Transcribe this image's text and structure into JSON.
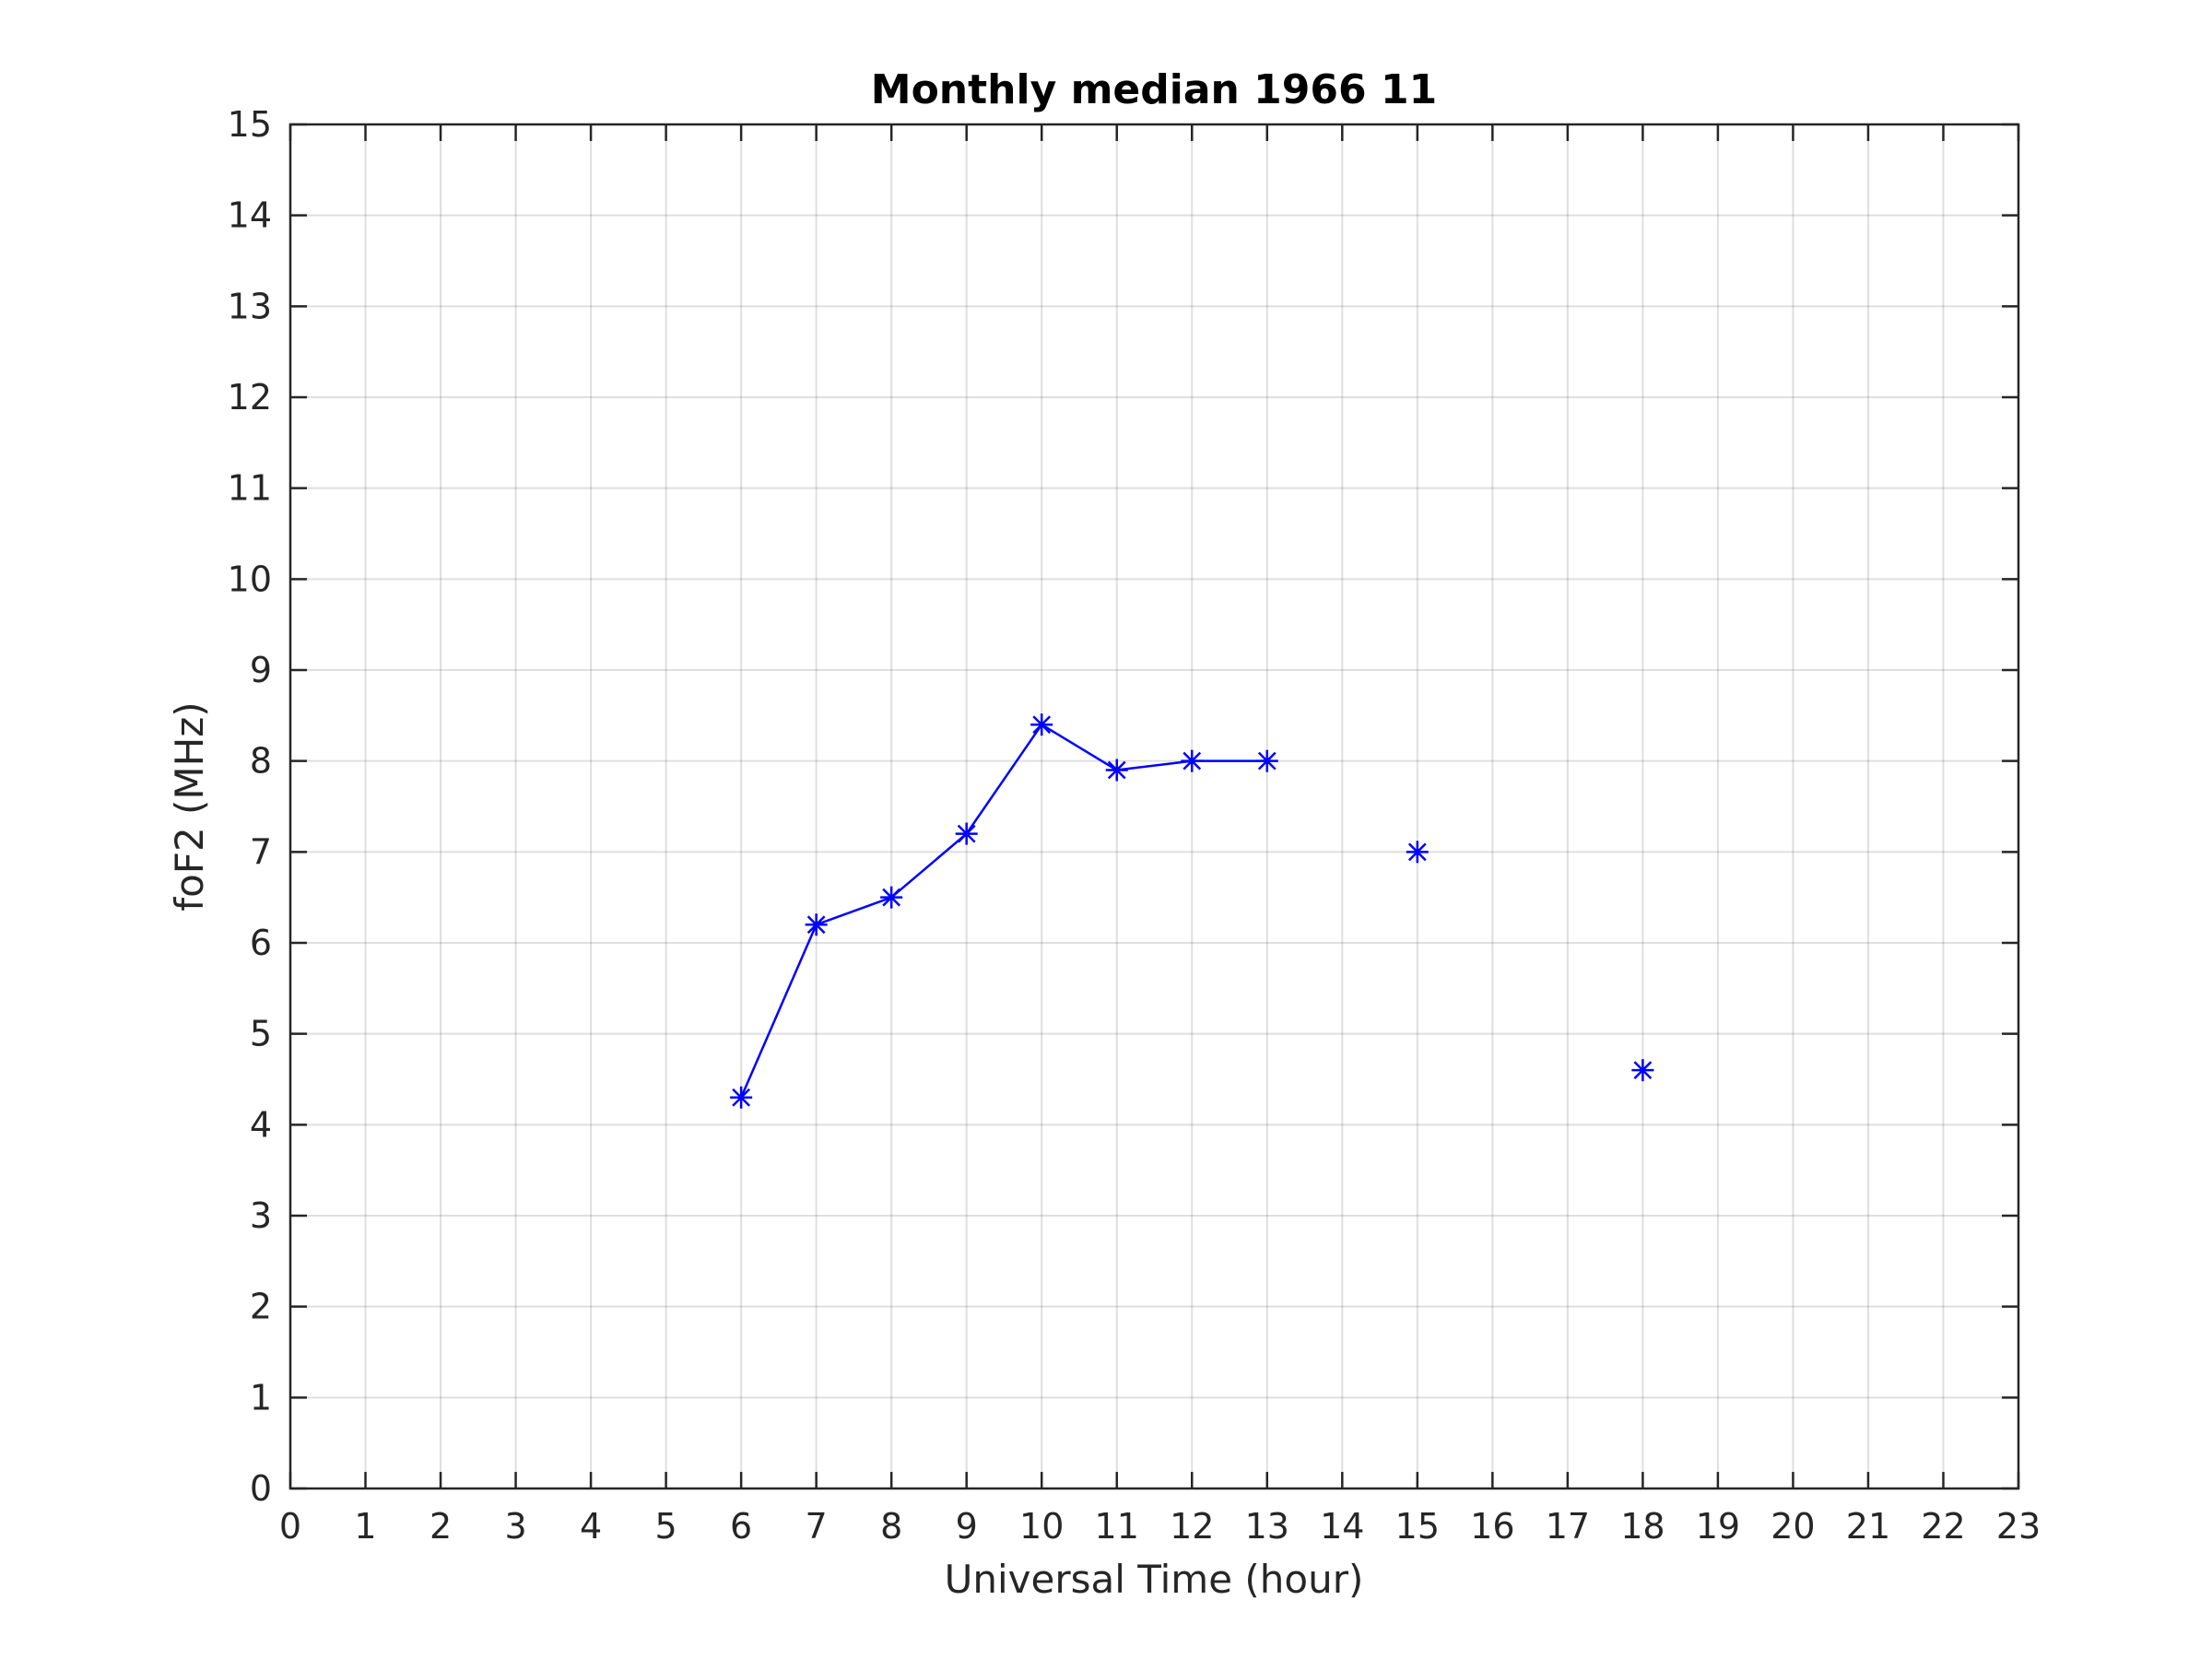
{
  "chart_data": {
    "type": "line",
    "title": "Monthly median 1966 11",
    "xlabel": "Universal Time (hour)",
    "ylabel": "foF2 (MHz)",
    "xlim": [
      0,
      23
    ],
    "ylim": [
      0,
      15
    ],
    "xticks": [
      "0",
      "1",
      "2",
      "3",
      "4",
      "5",
      "6",
      "7",
      "8",
      "9",
      "10",
      "11",
      "12",
      "13",
      "14",
      "15",
      "16",
      "17",
      "18",
      "19",
      "20",
      "21",
      "22",
      "23"
    ],
    "yticks": [
      "0",
      "1",
      "2",
      "3",
      "4",
      "5",
      "6",
      "7",
      "8",
      "9",
      "10",
      "11",
      "12",
      "13",
      "14",
      "15"
    ],
    "grid": true,
    "marker": "asterisk",
    "series": [
      {
        "color": "#0000ff",
        "x": [
          6,
          7,
          8,
          9,
          10,
          11,
          12,
          13,
          14,
          15,
          16,
          17,
          18
        ],
        "y": [
          4.3,
          6.2,
          6.5,
          7.2,
          8.4,
          7.9,
          8.0,
          8.0,
          null,
          7.0,
          null,
          null,
          4.6
        ]
      }
    ]
  }
}
